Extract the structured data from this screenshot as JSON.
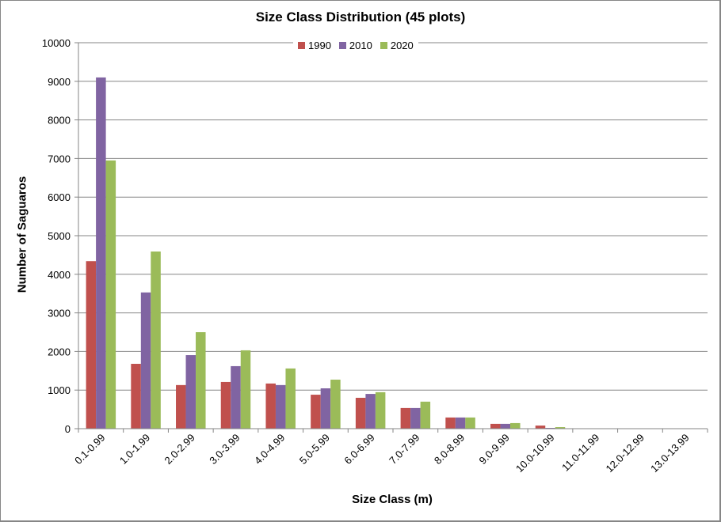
{
  "chart_data": {
    "type": "bar",
    "title": "Size Class Distribution  (45 plots)",
    "xlabel": "Size Class (m)",
    "ylabel": "Number of Saguaros",
    "ylim": [
      0,
      10000
    ],
    "yticks": [
      0,
      1000,
      2000,
      3000,
      4000,
      5000,
      6000,
      7000,
      8000,
      9000,
      10000
    ],
    "grid": true,
    "legend_position": "top",
    "categories": [
      "0.1-0.99",
      "1.0-1.99",
      "2.0-2.99",
      "3.0-3.99",
      "4.0-4.99",
      "5.0-5.99",
      "6.0-6.99",
      "7.0-7.99",
      "8.0-8.99",
      "9.0-9.99",
      "10.0-10.99",
      "11.0-11.99",
      "12.0-12.99",
      "13.0-13.99"
    ],
    "series": [
      {
        "name": "1990",
        "color": "#C0504D",
        "values": [
          4340,
          1680,
          1130,
          1210,
          1170,
          880,
          800,
          535,
          290,
          125,
          80,
          0,
          0,
          0
        ]
      },
      {
        "name": "2010",
        "color": "#8064A2",
        "values": [
          9100,
          3530,
          1905,
          1620,
          1130,
          1045,
          900,
          535,
          290,
          125,
          20,
          0,
          0,
          0
        ]
      },
      {
        "name": "2020",
        "color": "#9BBB59",
        "values": [
          6950,
          4590,
          2500,
          2030,
          1560,
          1270,
          945,
          700,
          290,
          145,
          40,
          0,
          0,
          0
        ]
      }
    ]
  }
}
